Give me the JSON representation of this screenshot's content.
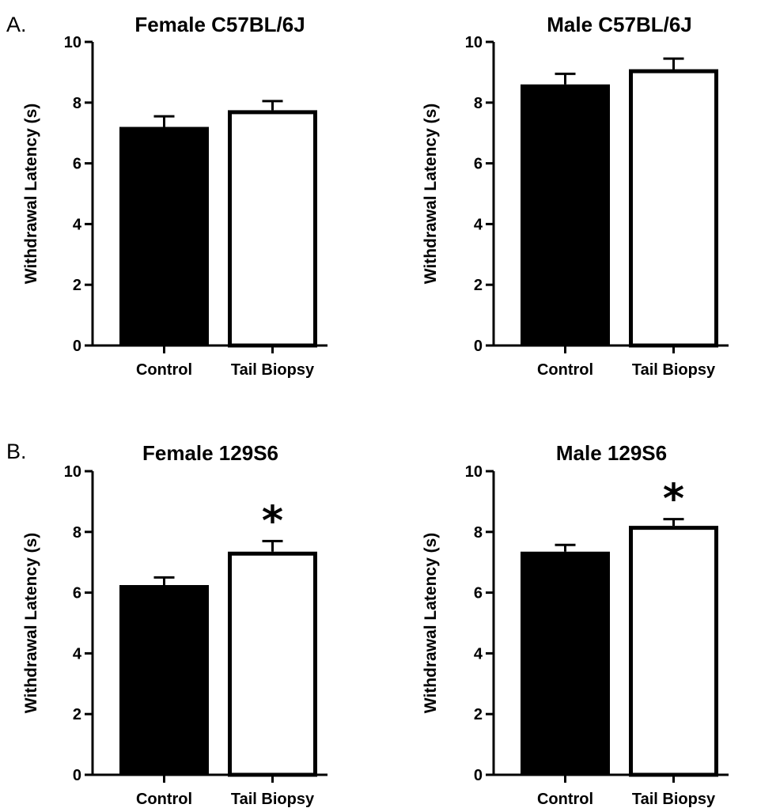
{
  "figure": {
    "panel_letters": [
      "A.",
      "B."
    ]
  },
  "chart_data": [
    {
      "type": "bar",
      "title": "Female C57BL/6J",
      "ylabel": "Withdrawal Latency (s)",
      "xlabel": "",
      "categories": [
        "Control",
        "Tail Biopsy"
      ],
      "values": [
        7.2,
        7.75
      ],
      "errors": [
        0.35,
        0.3
      ],
      "bar_fills": [
        "#000000",
        "#ffffff"
      ],
      "ylim": [
        0,
        10
      ],
      "yticks": [
        "0",
        "2",
        "4",
        "6",
        "8",
        "10"
      ],
      "significance": [
        "",
        ""
      ],
      "grid": false
    },
    {
      "type": "bar",
      "title": "Male C57BL/6J",
      "ylabel": "Withdrawal Latency (s)",
      "xlabel": "",
      "categories": [
        "Control",
        "Tail Biopsy"
      ],
      "values": [
        8.6,
        9.1
      ],
      "errors": [
        0.35,
        0.35
      ],
      "bar_fills": [
        "#000000",
        "#ffffff"
      ],
      "ylim": [
        0,
        10
      ],
      "yticks": [
        "0",
        "2",
        "4",
        "6",
        "8",
        "10"
      ],
      "significance": [
        "",
        ""
      ],
      "grid": false
    },
    {
      "type": "bar",
      "title": "Female 129S6",
      "ylabel": "Withdrawal Latency (s)",
      "xlabel": "",
      "categories": [
        "Control",
        "Tail Biopsy"
      ],
      "values": [
        6.25,
        7.35
      ],
      "errors": [
        0.25,
        0.35
      ],
      "bar_fills": [
        "#000000",
        "#ffffff"
      ],
      "ylim": [
        0,
        10
      ],
      "yticks": [
        "0",
        "2",
        "4",
        "6",
        "8",
        "10"
      ],
      "significance": [
        "",
        "*"
      ],
      "grid": false
    },
    {
      "type": "bar",
      "title": "Male 129S6",
      "ylabel": "Withdrawal Latency (s)",
      "xlabel": "",
      "categories": [
        "Control",
        "Tail Biopsy"
      ],
      "values": [
        7.35,
        8.2
      ],
      "errors": [
        0.22,
        0.22
      ],
      "bar_fills": [
        "#000000",
        "#ffffff"
      ],
      "ylim": [
        0,
        10
      ],
      "yticks": [
        "0",
        "2",
        "4",
        "6",
        "8",
        "10"
      ],
      "significance": [
        "",
        "*"
      ],
      "grid": false
    }
  ]
}
